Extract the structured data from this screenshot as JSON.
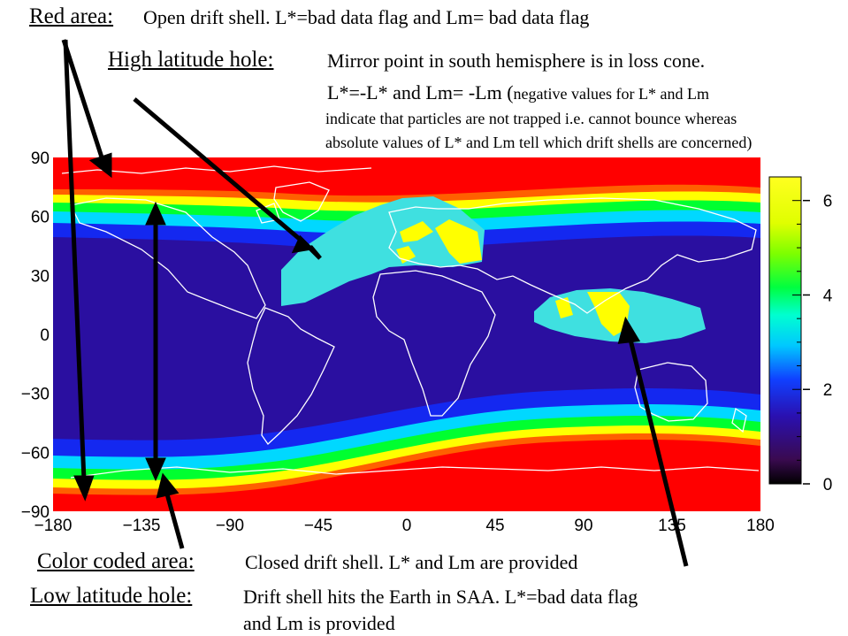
{
  "annotations": {
    "red_area": {
      "heading": "Red area:",
      "text": "Open drift shell. L*=bad data flag and Lm= bad data flag"
    },
    "high_lat": {
      "heading": "High latitude hole:",
      "text": "Mirror point in south hemisphere is in loss cone.",
      "line2_main": "L*=-L* and Lm= -Lm (",
      "line2_small": "negative values for L* and Lm",
      "line3": "indicate that particles are not trapped i.e. cannot bounce whereas",
      "line4": "absolute values of L* and Lm tell which drift shells are concerned)"
    },
    "color_coded": {
      "heading": "Color coded area:",
      "text": "Closed drift shell. L* and Lm are provided"
    },
    "low_lat": {
      "heading": "Low latitude hole:",
      "text": "Drift shell hits the Earth in SAA. L*=bad data flag",
      "text2": "and Lm is provided"
    }
  },
  "chart_data": {
    "type": "heatmap",
    "x_ticks": [
      -180,
      -135,
      -90,
      -45,
      0,
      45,
      90,
      135,
      180
    ],
    "y_ticks": [
      90,
      60,
      30,
      0,
      -30,
      -60,
      -90
    ],
    "xlim": [
      -180,
      180
    ],
    "ylim": [
      -90,
      90
    ],
    "colorbar": {
      "ticks": [
        0,
        2,
        4,
        6
      ],
      "range": [
        0,
        6.5
      ]
    },
    "colors": {
      "red": "#ff0000",
      "dark_blue": "#2a0fa0",
      "cyan": "#3fe0e0",
      "yellow": "#ffff00",
      "green": "#00ff00",
      "coast": "#ffffff"
    }
  }
}
